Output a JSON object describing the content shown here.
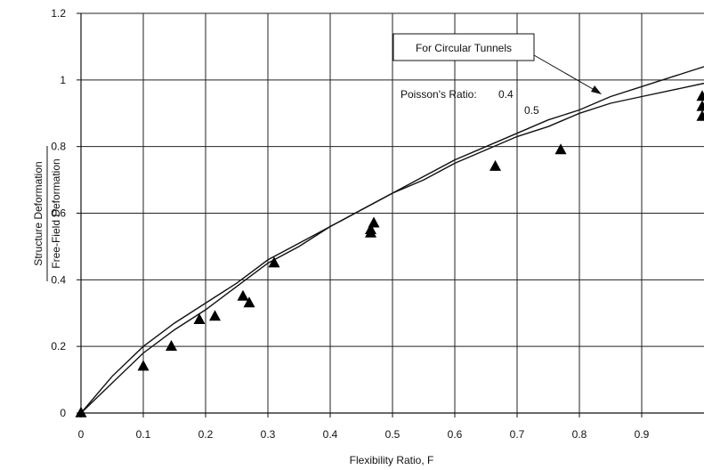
{
  "chart_data": {
    "type": "scatter",
    "xlabel": "Flexibility Ratio, F",
    "ylabel_top": "Structure Deformation",
    "ylabel_bottom": "Free-Field Deformation",
    "xlim": [
      0,
      1.0
    ],
    "ylim": [
      0,
      1.2
    ],
    "x_ticks": [
      "0",
      "0.1",
      "0.2",
      "0.3",
      "0.4",
      "0.5",
      "0.6",
      "0.7",
      "0.8",
      "0.9"
    ],
    "y_ticks": [
      "0",
      "0.2",
      "0.4",
      "0.6",
      "0.8",
      "1",
      "1.2"
    ],
    "grid": true,
    "series": [
      {
        "kind": "line",
        "label": "0.4",
        "x": [
          0,
          0.05,
          0.1,
          0.15,
          0.2,
          0.25,
          0.3,
          0.35,
          0.4,
          0.45,
          0.5,
          0.55,
          0.6,
          0.65,
          0.7,
          0.75,
          0.8,
          0.85,
          0.9,
          0.95,
          1.0
        ],
        "y": [
          0,
          0.11,
          0.2,
          0.27,
          0.33,
          0.39,
          0.46,
          0.51,
          0.56,
          0.61,
          0.66,
          0.71,
          0.76,
          0.8,
          0.84,
          0.88,
          0.91,
          0.95,
          0.98,
          1.01,
          1.04
        ]
      },
      {
        "kind": "line",
        "label": "0.5",
        "x": [
          0,
          0.05,
          0.1,
          0.15,
          0.2,
          0.25,
          0.3,
          0.35,
          0.4,
          0.45,
          0.5,
          0.55,
          0.6,
          0.65,
          0.7,
          0.75,
          0.8,
          0.85,
          0.9,
          0.95,
          1.0
        ],
        "y": [
          0,
          0.09,
          0.18,
          0.25,
          0.31,
          0.38,
          0.45,
          0.5,
          0.56,
          0.61,
          0.66,
          0.7,
          0.75,
          0.79,
          0.83,
          0.86,
          0.9,
          0.93,
          0.95,
          0.97,
          0.99
        ]
      },
      {
        "kind": "markers",
        "marker": "triangle",
        "x": [
          0,
          0.1,
          0.145,
          0.19,
          0.215,
          0.26,
          0.27,
          0.31,
          0.465,
          0.465,
          0.47,
          0.665,
          0.77,
          1.0,
          1.0,
          1.0
        ],
        "y": [
          0,
          0.14,
          0.2,
          0.28,
          0.29,
          0.35,
          0.33,
          0.45,
          0.54,
          0.55,
          0.57,
          0.74,
          0.79,
          0.95,
          0.92,
          0.89
        ]
      }
    ],
    "annotations": {
      "box_label": "For Circular Tunnels",
      "poisson_label": "Poisson's Ratio:",
      "value_04": "0.4",
      "value_05": "0.5"
    }
  }
}
